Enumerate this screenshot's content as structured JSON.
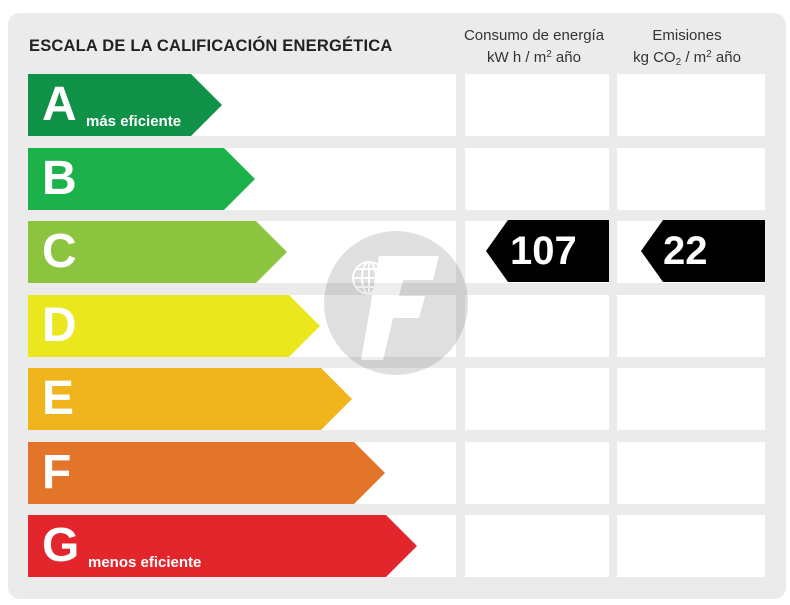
{
  "title": "ESCALA DE LA CALIFICACIÓN ENERGÉTICA",
  "columns": {
    "consumo": {
      "line1": "Consumo de energía",
      "line2_prefix": "kW h  / m",
      "line2_sup": "2",
      "line2_suffix": " año"
    },
    "emisiones": {
      "line1": "Emisiones",
      "line2_prefix": "kg CO",
      "line2_sub": "2",
      "line2_mid": "  / m",
      "line2_sup": "2",
      "line2_suffix": " año"
    }
  },
  "ratings": [
    {
      "letter": "A",
      "note": "más eficiente",
      "color": "#0f9147"
    },
    {
      "letter": "B",
      "note": "",
      "color": "#1db14b"
    },
    {
      "letter": "C",
      "note": "",
      "color": "#8cc43f"
    },
    {
      "letter": "D",
      "note": "",
      "color": "#eae71f"
    },
    {
      "letter": "E",
      "note": "",
      "color": "#f0b51c"
    },
    {
      "letter": "F",
      "note": "",
      "color": "#e2752a"
    },
    {
      "letter": "G",
      "note": "menos eficiente",
      "color": "#e3262c"
    }
  ],
  "result": {
    "rating": "C",
    "consumo_value": "107",
    "emisiones_value": "22",
    "marker_color": "#000000"
  },
  "watermark": {
    "icon": "globe-f-logo-icon"
  }
}
